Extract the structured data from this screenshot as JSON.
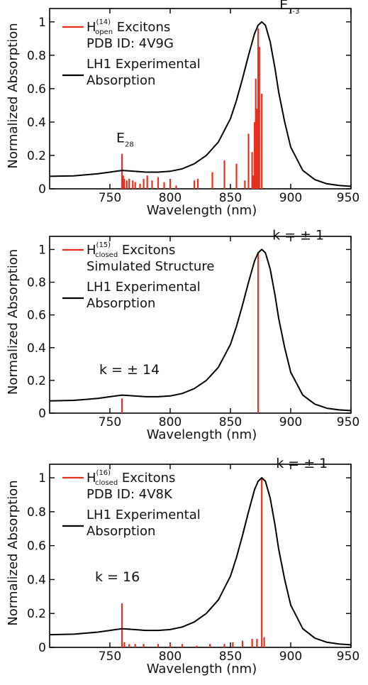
{
  "colors": {
    "stick": "#e8301f",
    "curve": "#000000",
    "axis": "#000000"
  },
  "chart_data": [
    {
      "type": "line",
      "xlabel": "Wavelength (nm)",
      "ylabel": "Normalized Absorption",
      "xlim": [
        700,
        950
      ],
      "ylim": [
        0,
        1.08
      ],
      "xticks": [
        "750",
        "800",
        "850",
        "900",
        "950"
      ],
      "yticks": [
        "0",
        "0.2",
        "0.4",
        "0.6",
        "0.8",
        "1"
      ],
      "legend": [
        {
          "main": "H",
          "sup": "(14)",
          "sub": "open",
          "rest": " Excitons",
          "line2": "PDB ID: 4V9G",
          "kind": "stick"
        },
        {
          "main": "LH1 Experimental",
          "line2": "Absorption",
          "kind": "curve"
        }
      ],
      "annotations": [
        {
          "text": "E",
          "sub": "28",
          "x": 760,
          "y": 0.22
        },
        {
          "text": "E",
          "sub": "1-3",
          "x": 873,
          "y": 1.0
        }
      ],
      "series": [
        {
          "name": "LH1 Experimental Absorption",
          "kind": "curve",
          "x": [
            700,
            720,
            740,
            750,
            755,
            760,
            765,
            770,
            780,
            790,
            800,
            810,
            820,
            830,
            840,
            850,
            855,
            860,
            865,
            870,
            873,
            876,
            879,
            883,
            887,
            890,
            895,
            900,
            910,
            920,
            930,
            940,
            950
          ],
          "y": [
            0.075,
            0.078,
            0.09,
            0.1,
            0.105,
            0.11,
            0.108,
            0.105,
            0.1,
            0.1,
            0.105,
            0.12,
            0.15,
            0.2,
            0.28,
            0.42,
            0.53,
            0.66,
            0.8,
            0.93,
            0.98,
            1.0,
            0.98,
            0.88,
            0.72,
            0.58,
            0.4,
            0.25,
            0.11,
            0.055,
            0.03,
            0.02,
            0.015
          ]
        },
        {
          "name": "Excitons",
          "kind": "stick",
          "x": [
            760,
            761,
            762,
            764,
            766,
            769,
            771,
            775,
            778,
            781,
            785,
            790,
            795,
            800,
            805,
            820,
            823,
            835,
            845,
            855,
            862,
            865,
            868,
            869,
            870,
            871,
            872,
            873,
            874,
            876
          ],
          "y": [
            0.21,
            0.08,
            0.06,
            0.05,
            0.06,
            0.05,
            0.04,
            0.03,
            0.06,
            0.08,
            0.05,
            0.07,
            0.04,
            0.06,
            0.02,
            0.05,
            0.06,
            0.1,
            0.17,
            0.15,
            0.05,
            0.33,
            0.22,
            0.08,
            0.4,
            0.66,
            0.48,
            0.96,
            0.85,
            0.57
          ]
        }
      ]
    },
    {
      "type": "line",
      "xlabel": "Wavelength (nm)",
      "ylabel": "Normalized Absorption",
      "xlim": [
        700,
        950
      ],
      "ylim": [
        0,
        1.08
      ],
      "xticks": [
        "750",
        "800",
        "850",
        "900",
        "950"
      ],
      "yticks": [
        "0",
        "0.2",
        "0.4",
        "0.6",
        "0.8",
        "1"
      ],
      "legend": [
        {
          "main": "H",
          "sup": "(15)",
          "sub": "closed",
          "rest": " Excitons",
          "line2": "Simulated Structure",
          "kind": "stick"
        },
        {
          "main": "LH1 Experimental",
          "line2": "Absorption",
          "kind": "curve"
        }
      ],
      "annotations": [
        {
          "text": "k = ± 14",
          "x": 760,
          "y": 0.17
        },
        {
          "text": "k = ± 1",
          "x": 873,
          "y": 1.0
        }
      ],
      "series": [
        {
          "name": "LH1 Experimental Absorption",
          "kind": "curve",
          "x": [
            700,
            720,
            740,
            750,
            755,
            760,
            765,
            770,
            780,
            790,
            800,
            810,
            820,
            830,
            840,
            850,
            855,
            860,
            865,
            870,
            873,
            876,
            879,
            883,
            887,
            890,
            895,
            900,
            910,
            920,
            930,
            940,
            950
          ],
          "y": [
            0.075,
            0.078,
            0.09,
            0.1,
            0.105,
            0.11,
            0.108,
            0.105,
            0.1,
            0.1,
            0.105,
            0.12,
            0.15,
            0.2,
            0.28,
            0.42,
            0.53,
            0.66,
            0.8,
            0.93,
            0.98,
            1.0,
            0.98,
            0.88,
            0.72,
            0.58,
            0.4,
            0.25,
            0.11,
            0.055,
            0.03,
            0.02,
            0.015
          ]
        },
        {
          "name": "Excitons",
          "kind": "stick",
          "x": [
            760,
            873
          ],
          "y": [
            0.09,
            0.98
          ]
        }
      ]
    },
    {
      "type": "line",
      "xlabel": "Wavelength (nm)",
      "ylabel": "Normalized Absorption",
      "xlim": [
        700,
        950
      ],
      "ylim": [
        0,
        1.08
      ],
      "xticks": [
        "750",
        "800",
        "850",
        "900",
        "950"
      ],
      "yticks": [
        "0",
        "0.2",
        "0.4",
        "0.6",
        "0.8",
        "1"
      ],
      "legend": [
        {
          "main": "H",
          "sup": "(16)",
          "sub": "closed",
          "rest": " Excitons",
          "line2": "PDB ID: 4V8K",
          "kind": "stick"
        },
        {
          "main": "LH1 Experimental",
          "line2": "Absorption",
          "kind": "curve"
        }
      ],
      "annotations": [
        {
          "text": "k = 16",
          "x": 760,
          "y": 0.33
        },
        {
          "text": "k = ± 1",
          "x": 876,
          "y": 1.0
        }
      ],
      "series": [
        {
          "name": "LH1 Experimental Absorption",
          "kind": "curve",
          "x": [
            700,
            720,
            740,
            750,
            755,
            760,
            765,
            770,
            780,
            790,
            800,
            810,
            820,
            830,
            840,
            850,
            855,
            860,
            865,
            870,
            873,
            876,
            879,
            883,
            887,
            890,
            895,
            900,
            910,
            920,
            930,
            940,
            950
          ],
          "y": [
            0.075,
            0.078,
            0.09,
            0.1,
            0.105,
            0.11,
            0.108,
            0.105,
            0.1,
            0.1,
            0.105,
            0.12,
            0.15,
            0.2,
            0.28,
            0.42,
            0.53,
            0.66,
            0.8,
            0.93,
            0.98,
            1.0,
            0.98,
            0.88,
            0.72,
            0.58,
            0.4,
            0.25,
            0.11,
            0.055,
            0.03,
            0.02,
            0.015
          ]
        },
        {
          "name": "Excitons",
          "kind": "stick",
          "x": [
            760,
            762,
            766,
            771,
            778,
            790,
            800,
            810,
            822,
            833,
            845,
            852,
            860,
            868,
            872,
            876,
            878
          ],
          "y": [
            0.26,
            0.03,
            0.02,
            0.02,
            0.02,
            0.02,
            0.02,
            0.02,
            0.01,
            0.02,
            0.02,
            0.03,
            0.04,
            0.05,
            0.05,
            1.0,
            0.06
          ]
        }
      ]
    }
  ]
}
